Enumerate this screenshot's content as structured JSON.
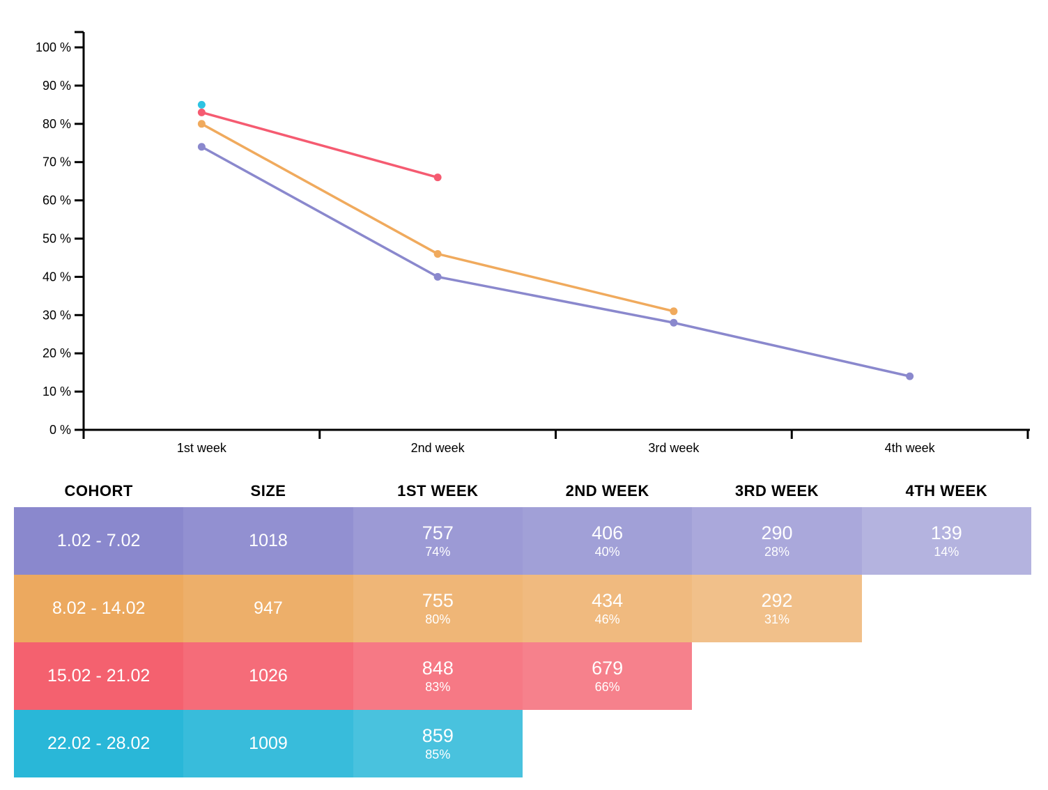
{
  "chart_data": {
    "type": "line",
    "title": "",
    "xlabel": "",
    "ylabel": "",
    "categories": [
      "1st week",
      "2nd week",
      "3rd week",
      "4th week"
    ],
    "y_ticks": [
      0,
      10,
      20,
      30,
      40,
      50,
      60,
      70,
      80,
      90,
      100
    ],
    "y_tick_labels": [
      "0 %",
      "10 %",
      "20 %",
      "30 %",
      "40 %",
      "50 %",
      "60 %",
      "70 %",
      "80 %",
      "90 %",
      "100 %"
    ],
    "ylim": [
      0,
      100
    ],
    "grid": false,
    "legend": "none",
    "series": [
      {
        "name": "1.02 - 7.02",
        "color": "#8A88CD",
        "values": [
          74,
          40,
          28,
          14
        ]
      },
      {
        "name": "8.02 - 14.02",
        "color": "#F0AA5D",
        "values": [
          80,
          46,
          31
        ]
      },
      {
        "name": "15.02 - 21.02",
        "color": "#F55B71",
        "values": [
          83,
          66
        ]
      },
      {
        "name": "22.02 - 28.02",
        "color": "#2EC3E2",
        "values": [
          85
        ]
      }
    ]
  },
  "table": {
    "headers": [
      "COHORT",
      "SIZE",
      "1ST WEEK",
      "2ND WEEK",
      "3RD WEEK",
      "4TH WEEK"
    ],
    "column_white_overlay": [
      0,
      0.07,
      0.15,
      0.2,
      0.27,
      0.36
    ],
    "rows": [
      {
        "cohort": "1.02 - 7.02",
        "size": "1018",
        "color": "#8A88CD",
        "weeks": [
          {
            "value": "757",
            "pct": "74%"
          },
          {
            "value": "406",
            "pct": "40%"
          },
          {
            "value": "290",
            "pct": "28%"
          },
          {
            "value": "139",
            "pct": "14%"
          }
        ]
      },
      {
        "cohort": "8.02 - 14.02",
        "size": "947",
        "color": "#ECA95F",
        "weeks": [
          {
            "value": "755",
            "pct": "80%"
          },
          {
            "value": "434",
            "pct": "46%"
          },
          {
            "value": "292",
            "pct": "31%"
          }
        ]
      },
      {
        "cohort": "15.02 - 21.02",
        "size": "1026",
        "color": "#F4616F",
        "weeks": [
          {
            "value": "848",
            "pct": "83%"
          },
          {
            "value": "679",
            "pct": "66%"
          }
        ]
      },
      {
        "cohort": "22.02 - 28.02",
        "size": "1009",
        "color": "#29B7D8",
        "weeks": [
          {
            "value": "859",
            "pct": "85%"
          }
        ]
      }
    ]
  }
}
